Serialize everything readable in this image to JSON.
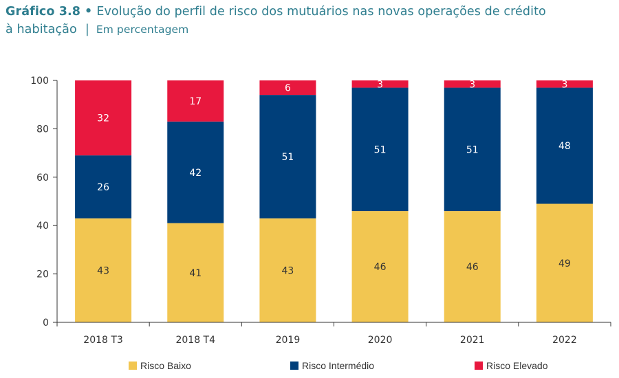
{
  "title": {
    "label": "Gráfico 3.8",
    "separator": "•",
    "text_line1": "Evolução do perfil de risco dos mutuários nas novas operações de crédito",
    "text_line2": "à habitação",
    "unit_separator": "|",
    "unit": "Em percentagem"
  },
  "chart_data": {
    "type": "bar",
    "stacked": true,
    "categories": [
      "2018 T3",
      "2018 T4",
      "2019",
      "2020",
      "2021",
      "2022"
    ],
    "series": [
      {
        "name": "Risco Baixo",
        "color": "#f2c651",
        "label_color": "#333333",
        "values": [
          43,
          41,
          43,
          46,
          46,
          49
        ]
      },
      {
        "name": "Risco Intermédio",
        "color": "#003f7a",
        "label_color": "#ffffff",
        "values": [
          26,
          42,
          51,
          51,
          51,
          48
        ]
      },
      {
        "name": "Risco Elevado",
        "color": "#e8183e",
        "label_color": "#ffffff",
        "values": [
          32,
          17,
          6,
          3,
          3,
          3
        ]
      }
    ],
    "ylim": [
      0,
      100
    ],
    "yticks": [
      0,
      20,
      40,
      60,
      80,
      100
    ],
    "legend_position": "bottom",
    "grid": false
  }
}
